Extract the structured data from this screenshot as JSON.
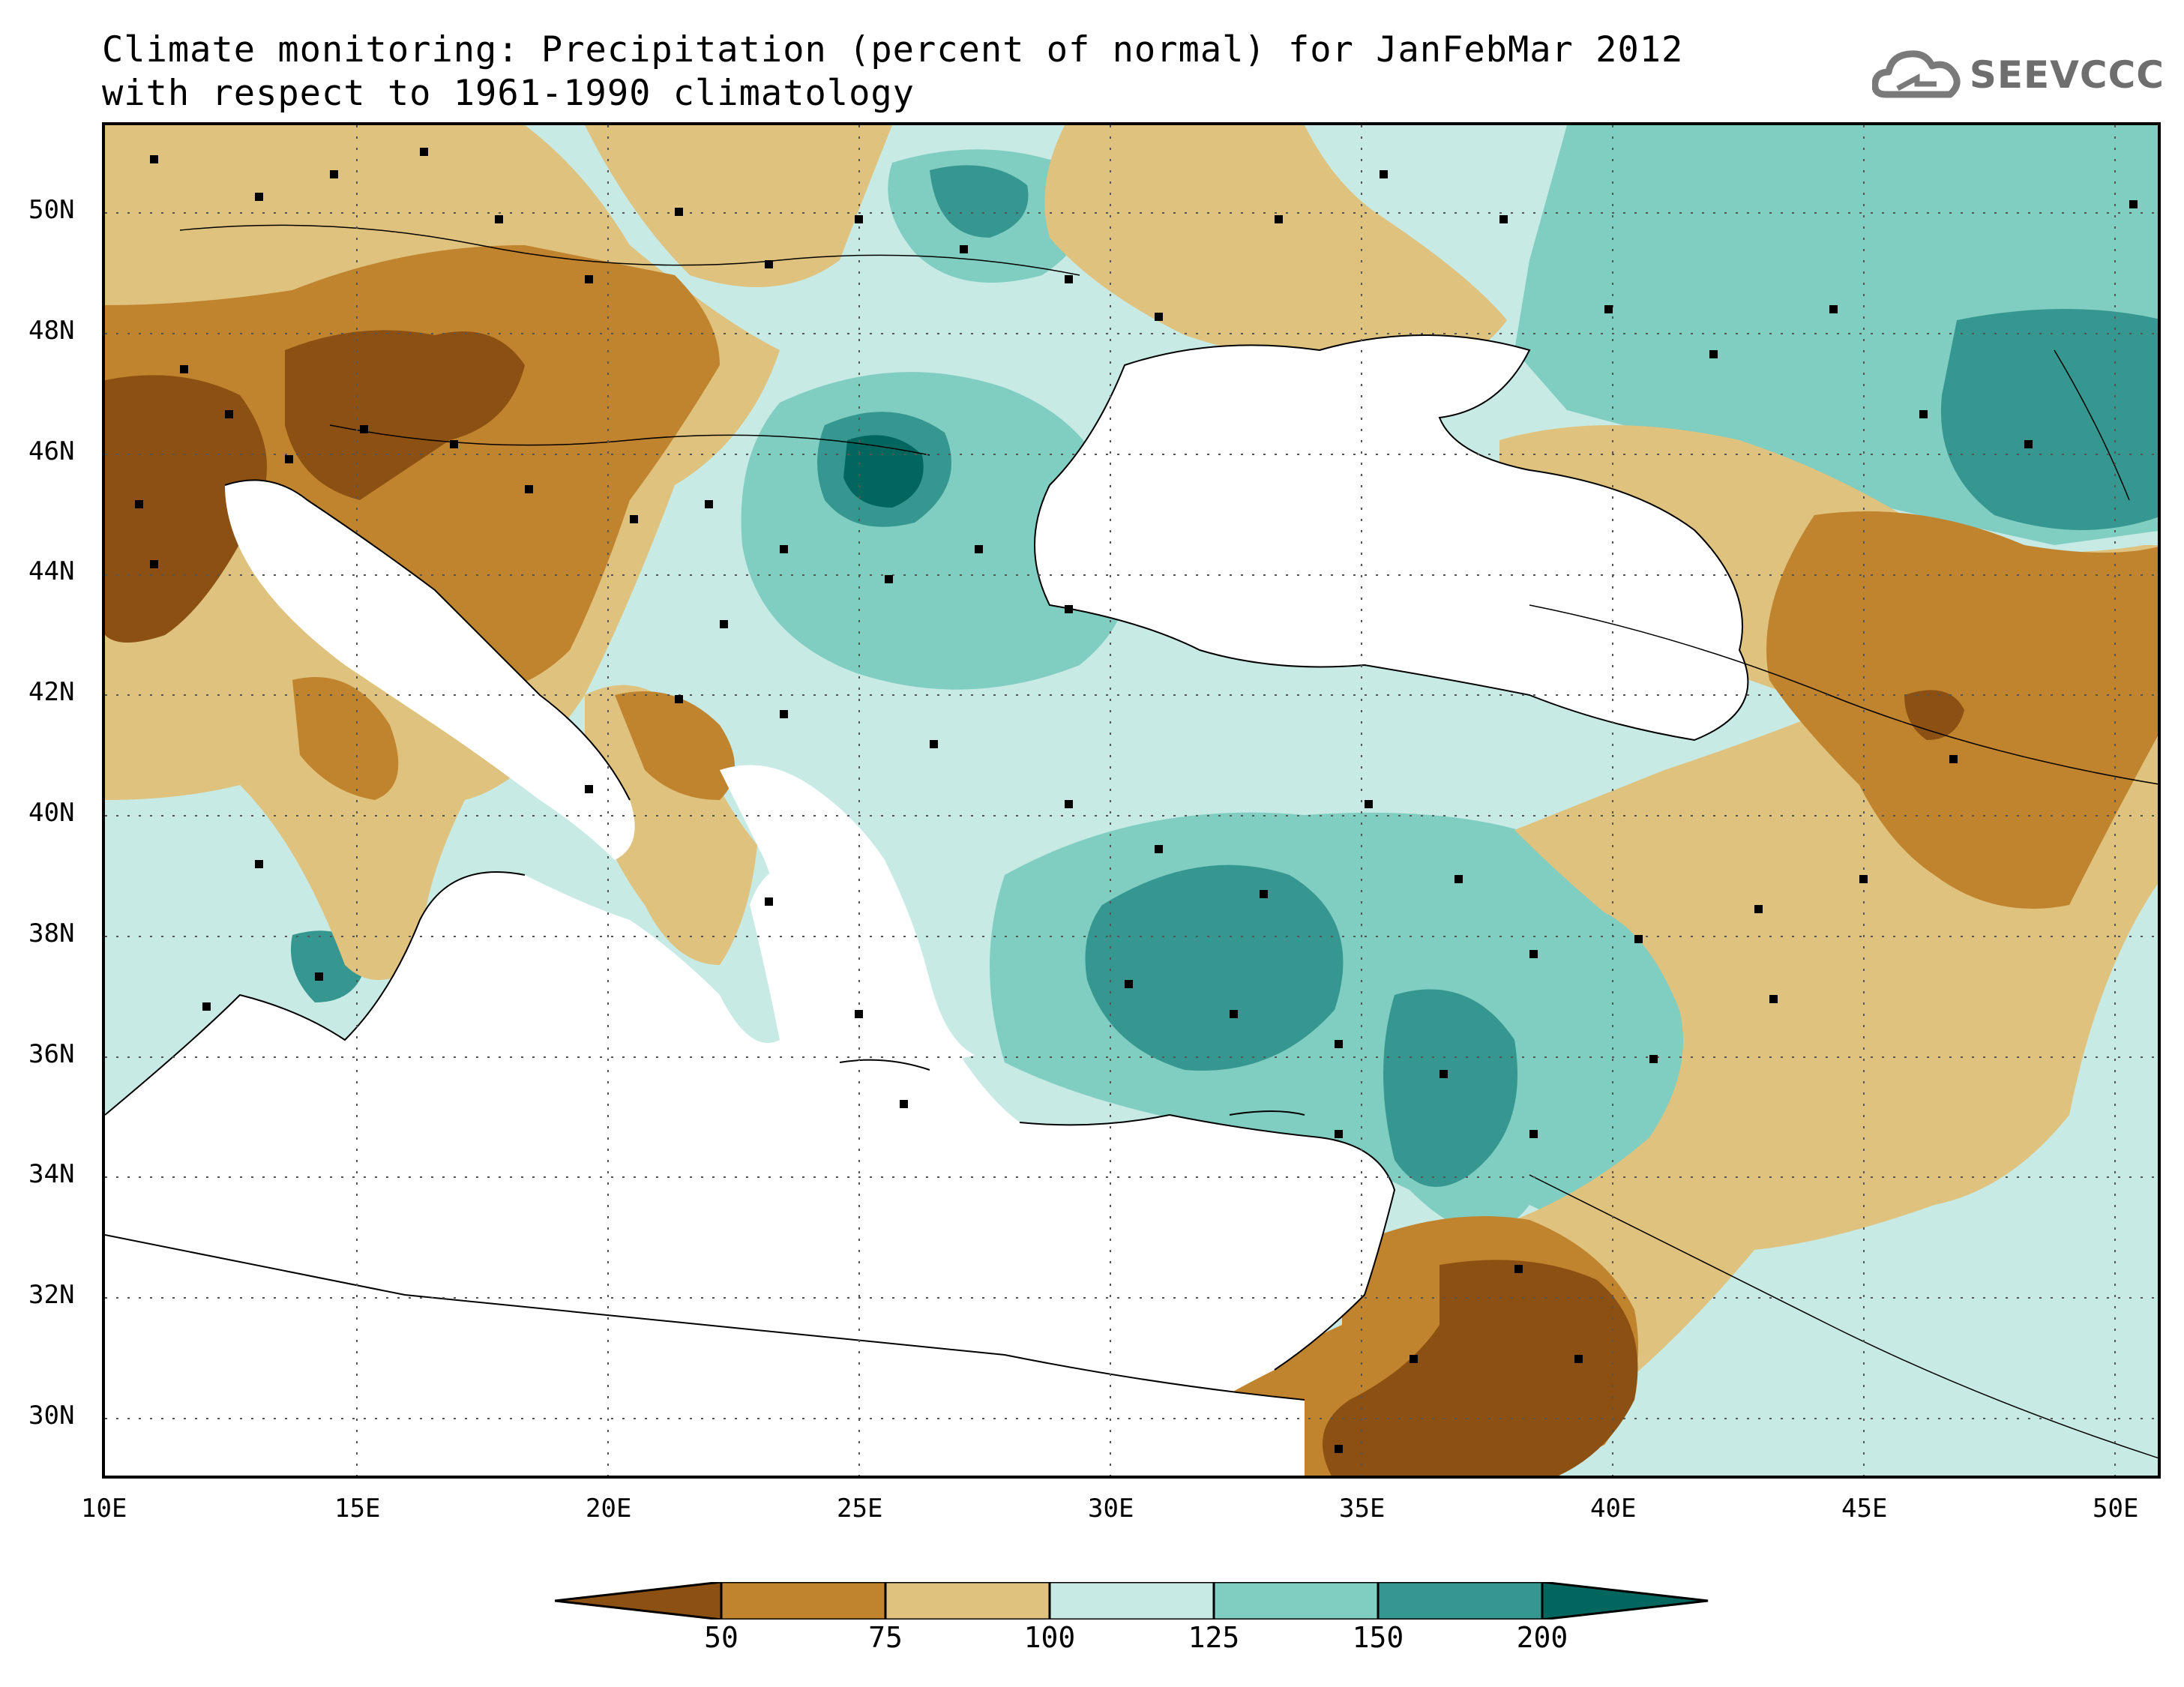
{
  "title": {
    "line1": "Climate monitoring: Precipitation (percent of normal) for JanFebMar 2012",
    "line2": "with respect to 1961-1990 climatology"
  },
  "logo": {
    "text": "SEEVCCC",
    "icon": "cloud-icon"
  },
  "map": {
    "lon_range": [
      10,
      51
    ],
    "lat_range": [
      29,
      51.5
    ],
    "lon_ticks": [
      "10E",
      "15E",
      "20E",
      "25E",
      "30E",
      "35E",
      "40E",
      "45E",
      "50E"
    ],
    "lat_ticks": [
      "30N",
      "32N",
      "34N",
      "36N",
      "38N",
      "40N",
      "42N",
      "44N",
      "46N",
      "48N",
      "50N"
    ],
    "gridlines": "dotted"
  },
  "legend": {
    "labels": [
      "50",
      "75",
      "100",
      "125",
      "150",
      "200"
    ],
    "colors": [
      "#8c5012",
      "#c0832e",
      "#dfc27d",
      "#c7eae5",
      "#80cdc1",
      "#35978f",
      "#01665e"
    ]
  }
}
